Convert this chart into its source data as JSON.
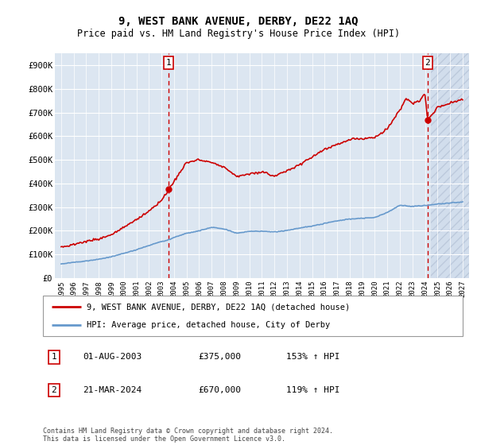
{
  "title": "9, WEST BANK AVENUE, DERBY, DE22 1AQ",
  "subtitle": "Price paid vs. HM Land Registry's House Price Index (HPI)",
  "ylim": [
    0,
    950000
  ],
  "yticks": [
    0,
    100000,
    200000,
    300000,
    400000,
    500000,
    600000,
    700000,
    800000,
    900000
  ],
  "ytick_labels": [
    "£0",
    "£100K",
    "£200K",
    "£300K",
    "£400K",
    "£500K",
    "£600K",
    "£700K",
    "£800K",
    "£900K"
  ],
  "xlim_start": 1994.5,
  "xlim_end": 2027.5,
  "background_color": "#dce6f1",
  "grid_color": "#ffffff",
  "hpi_line_color": "#6699cc",
  "price_line_color": "#cc0000",
  "future_start": 2024.5,
  "sale1_t": 2003.583,
  "sale1_price": 375000,
  "sale2_t": 2024.208,
  "sale2_price": 670000,
  "hpi_knots": [
    [
      1995,
      60000
    ],
    [
      1996,
      67000
    ],
    [
      1997,
      73000
    ],
    [
      1998,
      80000
    ],
    [
      1999,
      90000
    ],
    [
      2000,
      105000
    ],
    [
      2001,
      120000
    ],
    [
      2002,
      138000
    ],
    [
      2003,
      155000
    ],
    [
      2003.583,
      162000
    ],
    [
      2004,
      172000
    ],
    [
      2005,
      190000
    ],
    [
      2006,
      200000
    ],
    [
      2007,
      215000
    ],
    [
      2008,
      208000
    ],
    [
      2009,
      190000
    ],
    [
      2010,
      198000
    ],
    [
      2011,
      198000
    ],
    [
      2012,
      195000
    ],
    [
      2013,
      202000
    ],
    [
      2014,
      212000
    ],
    [
      2015,
      220000
    ],
    [
      2016,
      232000
    ],
    [
      2017,
      242000
    ],
    [
      2018,
      250000
    ],
    [
      2019,
      253000
    ],
    [
      2020,
      256000
    ],
    [
      2021,
      278000
    ],
    [
      2022,
      308000
    ],
    [
      2023,
      303000
    ],
    [
      2024,
      307000
    ],
    [
      2024.208,
      308000
    ],
    [
      2025,
      313000
    ],
    [
      2026,
      318000
    ],
    [
      2027,
      322000
    ]
  ],
  "price_knots": [
    [
      1995,
      130000
    ],
    [
      1996,
      143000
    ],
    [
      1997,
      155000
    ],
    [
      1998,
      165000
    ],
    [
      1999,
      185000
    ],
    [
      2000,
      215000
    ],
    [
      2001,
      248000
    ],
    [
      2002,
      285000
    ],
    [
      2003,
      328000
    ],
    [
      2003.583,
      375000
    ],
    [
      2004,
      410000
    ],
    [
      2005,
      490000
    ],
    [
      2006,
      500000
    ],
    [
      2007,
      490000
    ],
    [
      2008,
      470000
    ],
    [
      2009,
      430000
    ],
    [
      2010,
      440000
    ],
    [
      2011,
      450000
    ],
    [
      2012,
      430000
    ],
    [
      2013,
      455000
    ],
    [
      2014,
      480000
    ],
    [
      2015,
      510000
    ],
    [
      2016,
      545000
    ],
    [
      2017,
      565000
    ],
    [
      2018,
      585000
    ],
    [
      2019,
      590000
    ],
    [
      2020,
      595000
    ],
    [
      2021,
      630000
    ],
    [
      2022,
      710000
    ],
    [
      2022.5,
      760000
    ],
    [
      2022.8,
      750000
    ],
    [
      2023,
      740000
    ],
    [
      2023.5,
      745000
    ],
    [
      2023.8,
      770000
    ],
    [
      2024.0,
      780000
    ],
    [
      2024.208,
      670000
    ],
    [
      2025,
      720000
    ],
    [
      2026,
      740000
    ],
    [
      2027,
      755000
    ]
  ],
  "legend_label1": "9, WEST BANK AVENUE, DERBY, DE22 1AQ (detached house)",
  "legend_label2": "HPI: Average price, detached house, City of Derby",
  "ann1_label": "1",
  "ann1_date": "01-AUG-2003",
  "ann1_price": "£375,000",
  "ann1_hpi": "153% ↑ HPI",
  "ann2_label": "2",
  "ann2_date": "21-MAR-2024",
  "ann2_price": "£670,000",
  "ann2_hpi": "119% ↑ HPI",
  "footer": "Contains HM Land Registry data © Crown copyright and database right 2024.\nThis data is licensed under the Open Government Licence v3.0."
}
